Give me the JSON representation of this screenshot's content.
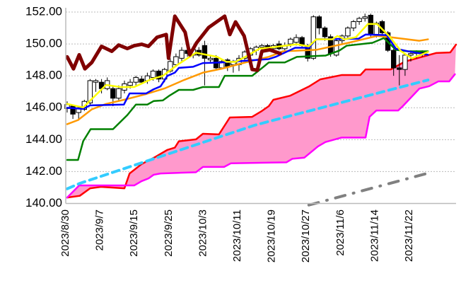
{
  "chart_data": {
    "type": "line",
    "title": "",
    "xlabel": "",
    "ylabel": "",
    "ylim": [
      140,
      152
    ],
    "xlim": [
      -0.3,
      68
    ],
    "y_ticks": [
      "140.00",
      "142.00",
      "144.00",
      "146.00",
      "148.00",
      "150.00",
      "152.00"
    ],
    "y_tick_values": [
      140,
      142,
      144,
      146,
      148,
      150,
      152
    ],
    "x_ticks": [
      {
        "i": 0,
        "label": "2023/8/30"
      },
      {
        "i": 6,
        "label": "2023/9/7"
      },
      {
        "i": 12,
        "label": "2023/9/15"
      },
      {
        "i": 18,
        "label": "2023/9/25"
      },
      {
        "i": 24,
        "label": "2023/10/3"
      },
      {
        "i": 30,
        "label": "2023/10/11"
      },
      {
        "i": 36,
        "label": "2023/10/19"
      },
      {
        "i": 42,
        "label": "2023/10/27"
      },
      {
        "i": 48,
        "label": "2023/11/6"
      },
      {
        "i": 54,
        "label": "2023/11/14"
      },
      {
        "i": 60,
        "label": "2023/11/22"
      }
    ],
    "grid": true,
    "colors": {
      "cloud": "#ff99cc",
      "candle_up": "#ffffff",
      "candle_down": "#000000"
    },
    "candles_ohlc": [
      [
        145.95,
        146.4,
        145.7,
        146.2
      ],
      [
        146.1,
        146.2,
        145.3,
        145.6
      ],
      [
        145.7,
        146.1,
        145.2,
        146.0
      ],
      [
        145.9,
        146.5,
        145.8,
        146.4
      ],
      [
        146.3,
        147.8,
        146.1,
        147.7
      ],
      [
        147.6,
        147.8,
        147.0,
        147.7
      ],
      [
        147.6,
        147.8,
        146.9,
        147.2
      ],
      [
        147.2,
        147.9,
        147.1,
        147.7
      ],
      [
        147.2,
        147.4,
        146.1,
        146.6
      ],
      [
        146.6,
        147.4,
        146.4,
        147.2
      ],
      [
        147.1,
        147.7,
        146.9,
        147.5
      ],
      [
        147.4,
        147.8,
        147.2,
        147.6
      ],
      [
        147.6,
        148.0,
        147.4,
        147.9
      ],
      [
        147.8,
        148.0,
        147.5,
        147.6
      ],
      [
        147.7,
        148.2,
        147.5,
        148.0
      ],
      [
        147.9,
        148.4,
        147.7,
        148.3
      ],
      [
        148.3,
        148.4,
        147.6,
        147.8
      ],
      [
        147.8,
        148.5,
        147.6,
        148.4
      ],
      [
        148.3,
        149.1,
        148.2,
        148.9
      ],
      [
        148.7,
        149.4,
        148.6,
        149.2
      ],
      [
        149.1,
        149.8,
        148.9,
        149.6
      ],
      [
        149.6,
        149.9,
        149.2,
        149.4
      ],
      [
        149.3,
        149.8,
        149.1,
        149.65
      ],
      [
        149.6,
        149.8,
        149.2,
        149.3
      ],
      [
        149.9,
        150.2,
        147.4,
        149.1
      ],
      [
        149.0,
        149.3,
        148.8,
        149.1
      ],
      [
        149.1,
        149.3,
        148.4,
        148.5
      ],
      [
        148.5,
        149.0,
        148.4,
        148.9
      ],
      [
        149.0,
        149.1,
        148.3,
        148.6
      ],
      [
        148.7,
        149.0,
        148.2,
        148.85
      ],
      [
        148.7,
        149.3,
        148.3,
        149.1
      ],
      [
        149.1,
        149.6,
        148.9,
        149.5
      ],
      [
        149.3,
        149.8,
        149.1,
        149.7
      ],
      [
        149.6,
        149.9,
        149.3,
        149.8
      ],
      [
        149.8,
        150.0,
        149.6,
        149.9
      ],
      [
        149.9,
        150.0,
        149.6,
        149.7
      ],
      [
        149.7,
        150.0,
        149.6,
        149.9
      ],
      [
        150.0,
        150.2,
        149.6,
        149.7
      ],
      [
        149.7,
        150.1,
        149.6,
        149.9
      ],
      [
        150.0,
        150.4,
        149.8,
        150.3
      ],
      [
        150.1,
        150.6,
        149.9,
        150.4
      ],
      [
        150.4,
        150.5,
        149.8,
        149.9
      ],
      [
        149.9,
        150.0,
        148.9,
        149.1
      ],
      [
        149.1,
        151.8,
        149.0,
        151.7
      ],
      [
        151.7,
        151.8,
        150.6,
        151.0
      ],
      [
        151.0,
        151.1,
        150.2,
        150.45
      ],
      [
        150.45,
        150.6,
        149.2,
        149.4
      ],
      [
        149.3,
        150.3,
        149.2,
        150.2
      ],
      [
        150.2,
        150.6,
        150.0,
        150.5
      ],
      [
        150.5,
        151.1,
        150.3,
        151.0
      ],
      [
        151.0,
        151.5,
        150.8,
        151.4
      ],
      [
        151.4,
        151.7,
        151.2,
        151.6
      ],
      [
        151.6,
        151.9,
        151.4,
        151.7
      ],
      [
        151.8,
        151.9,
        150.4,
        150.6
      ],
      [
        150.6,
        151.4,
        150.4,
        151.3
      ],
      [
        151.4,
        151.5,
        150.6,
        150.7
      ],
      [
        150.7,
        150.8,
        149.5,
        149.6
      ],
      [
        149.6,
        149.7,
        148.0,
        148.5
      ],
      [
        148.5,
        149.3,
        147.4,
        148.4
      ],
      [
        148.4,
        149.4,
        148.0,
        149.3
      ],
      [
        149.3,
        149.6,
        148.9,
        149.4
      ],
      [
        149.4,
        149.6,
        149.1,
        149.5
      ],
      [
        149.5,
        149.6,
        149.2,
        149.4
      ]
    ],
    "series": [
      {
        "name": "senkou-span-a",
        "color": "#ff0000",
        "width": 2.5,
        "dash": "",
        "points": [
          [
            0,
            140.37
          ],
          [
            2.2,
            140.48
          ],
          [
            4,
            140.95
          ],
          [
            5.9,
            141.04
          ],
          [
            10,
            140.95
          ],
          [
            10.9,
            141.88
          ],
          [
            13,
            142.47
          ],
          [
            15.4,
            142.92
          ],
          [
            17.5,
            143.36
          ],
          [
            18.8,
            143.5
          ],
          [
            19.5,
            143.9
          ],
          [
            22.5,
            144.02
          ],
          [
            23.7,
            144.37
          ],
          [
            26.5,
            144.33
          ],
          [
            28.4,
            145.39
          ],
          [
            32.3,
            145.43
          ],
          [
            34,
            145.8
          ],
          [
            35.2,
            146.1
          ],
          [
            36,
            146.5
          ],
          [
            38.9,
            146.75
          ],
          [
            42.2,
            147.33
          ],
          [
            44.2,
            147.78
          ],
          [
            47.9,
            148.05
          ],
          [
            51.2,
            148.05
          ],
          [
            52.1,
            148.4
          ],
          [
            56.5,
            148.4
          ],
          [
            59,
            148.9
          ],
          [
            64.4,
            149.43
          ],
          [
            66.9,
            149.47
          ],
          [
            67.9,
            149.96
          ]
        ]
      },
      {
        "name": "senkou-span-b",
        "color": "#ff00ff",
        "width": 2.5,
        "dash": "",
        "points": [
          [
            0,
            140.37
          ],
          [
            2.1,
            141.13
          ],
          [
            11.7,
            141.13
          ],
          [
            13,
            141.4
          ],
          [
            14.2,
            141.57
          ],
          [
            15.1,
            141.8
          ],
          [
            16.3,
            141.88
          ],
          [
            22.5,
            141.96
          ],
          [
            23.7,
            142.29
          ],
          [
            27.4,
            142.29
          ],
          [
            28.6,
            142.52
          ],
          [
            38.3,
            142.58
          ],
          [
            39.3,
            142.8
          ],
          [
            41.4,
            142.87
          ],
          [
            43.8,
            143.58
          ],
          [
            45.1,
            143.85
          ],
          [
            47.9,
            144.13
          ],
          [
            52.1,
            144.13
          ],
          [
            52.8,
            145.43
          ],
          [
            54,
            145.83
          ],
          [
            57.8,
            145.83
          ],
          [
            58.6,
            146.1
          ],
          [
            61.5,
            147.2
          ],
          [
            63.2,
            147.35
          ],
          [
            64.8,
            147.65
          ],
          [
            66.7,
            147.65
          ],
          [
            67.7,
            148.1
          ]
        ]
      },
      {
        "name": "long-term-trend-cyan",
        "color": "#33ccff",
        "width": 4,
        "dash": "10 7",
        "points": [
          [
            0,
            140.92
          ],
          [
            2.2,
            141.26
          ],
          [
            32.7,
            144.9
          ],
          [
            35.2,
            145.14
          ],
          [
            63,
            147.74
          ]
        ]
      },
      {
        "name": "long-term-trend-gray",
        "color": "#808080",
        "width": 4,
        "dash": "14 12 1 12",
        "points": [
          [
            42.2,
            139.9
          ],
          [
            63,
            141.9
          ]
        ]
      },
      {
        "name": "green-line",
        "color": "#008000",
        "width": 2.5,
        "dash": "",
        "points": [
          [
            0,
            142.73
          ],
          [
            1.9,
            142.73
          ],
          [
            2.8,
            143.91
          ],
          [
            4.1,
            144.66
          ],
          [
            8,
            144.66
          ],
          [
            10.5,
            145.54
          ],
          [
            12,
            146.2
          ],
          [
            14,
            146.2
          ],
          [
            15.1,
            146.42
          ],
          [
            16.7,
            146.46
          ],
          [
            17.9,
            146.77
          ],
          [
            19.5,
            147.12
          ],
          [
            22,
            147.12
          ],
          [
            23.7,
            147.3
          ],
          [
            26.5,
            147.3
          ],
          [
            27.5,
            148.0
          ],
          [
            32.3,
            148.0
          ],
          [
            34.3,
            148.57
          ],
          [
            35.2,
            148.84
          ],
          [
            38,
            148.84
          ],
          [
            40.1,
            149.19
          ],
          [
            45.1,
            149.27
          ],
          [
            47.5,
            149.58
          ],
          [
            48.8,
            149.89
          ],
          [
            53.3,
            150.07
          ],
          [
            55.3,
            150.37
          ],
          [
            57.4,
            149.63
          ],
          [
            59.5,
            149.54
          ],
          [
            63,
            149.54
          ]
        ]
      },
      {
        "name": "orange-line",
        "color": "#ff9900",
        "width": 2.5,
        "dash": "",
        "points": [
          [
            0,
            144.97
          ],
          [
            1.9,
            145.23
          ],
          [
            4.3,
            145.9
          ],
          [
            6.8,
            146.24
          ],
          [
            10.5,
            146.55
          ],
          [
            13.8,
            146.86
          ],
          [
            17,
            147.21
          ],
          [
            20.4,
            147.74
          ],
          [
            23.7,
            148.2
          ],
          [
            26.9,
            148.44
          ],
          [
            31.1,
            148.84
          ],
          [
            35.2,
            149.19
          ],
          [
            37.7,
            149.54
          ],
          [
            43.5,
            149.63
          ],
          [
            49.1,
            150.07
          ],
          [
            54.1,
            150.5
          ],
          [
            56.5,
            150.42
          ],
          [
            61.5,
            150.2
          ],
          [
            63,
            150.29
          ]
        ]
      },
      {
        "name": "kijun-sen",
        "color": "#0000ff",
        "width": 2.5,
        "dash": "",
        "points": [
          [
            0,
            146.0
          ],
          [
            2.8,
            145.93
          ],
          [
            4,
            146.15
          ],
          [
            9.9,
            146.2
          ],
          [
            10.9,
            146.9
          ],
          [
            13.8,
            146.9
          ],
          [
            15.1,
            147.16
          ],
          [
            16.3,
            147.34
          ],
          [
            17.5,
            148.0
          ],
          [
            18.8,
            148.2
          ],
          [
            19.5,
            148.5
          ],
          [
            22,
            148.57
          ],
          [
            23.7,
            148.8
          ],
          [
            26.9,
            148.84
          ],
          [
            35.2,
            149.05
          ],
          [
            36.4,
            149.19
          ],
          [
            39.8,
            149.76
          ],
          [
            42.2,
            149.76
          ],
          [
            43.5,
            150.29
          ],
          [
            50.9,
            150.33
          ],
          [
            52.1,
            150.59
          ],
          [
            55.8,
            150.55
          ],
          [
            57.4,
            149.7
          ],
          [
            59.5,
            149.54
          ],
          [
            63,
            149.32
          ]
        ]
      },
      {
        "name": "tenkan-sen",
        "color": "#ffff00",
        "width": 2.5,
        "dash": "",
        "points": [
          [
            0,
            146.24
          ],
          [
            2.8,
            146.02
          ],
          [
            4.3,
            146.55
          ],
          [
            6.8,
            147.43
          ],
          [
            9.3,
            147.3
          ],
          [
            11.7,
            147.3
          ],
          [
            14.6,
            147.78
          ],
          [
            16.7,
            148.0
          ],
          [
            19.5,
            148.75
          ],
          [
            22.5,
            149.45
          ],
          [
            26.2,
            149.19
          ],
          [
            27.8,
            148.88
          ],
          [
            29.4,
            148.88
          ],
          [
            31.1,
            149.19
          ],
          [
            33.6,
            149.71
          ],
          [
            35.2,
            149.76
          ],
          [
            40.1,
            149.98
          ],
          [
            42.2,
            149.85
          ],
          [
            43.5,
            150.29
          ],
          [
            46.3,
            150.29
          ],
          [
            47.2,
            150.5
          ],
          [
            48.4,
            150.29
          ],
          [
            50.4,
            150.42
          ],
          [
            52.5,
            151.25
          ],
          [
            54.1,
            151.25
          ],
          [
            56.2,
            150.5
          ],
          [
            58.3,
            149.54
          ],
          [
            60.2,
            149.1
          ],
          [
            63,
            149.5
          ]
        ]
      },
      {
        "name": "chikou-span",
        "color": "#800000",
        "width": 5,
        "dash": "",
        "points": [
          [
            0,
            149.19
          ],
          [
            1.1,
            148.44
          ],
          [
            2.1,
            149.32
          ],
          [
            3.1,
            148.44
          ],
          [
            4.3,
            148.84
          ],
          [
            6,
            149.85
          ],
          [
            7.8,
            149.54
          ],
          [
            9,
            149.93
          ],
          [
            10.5,
            149.71
          ],
          [
            11.7,
            149.89
          ],
          [
            13,
            149.98
          ],
          [
            14.2,
            149.85
          ],
          [
            15.7,
            150.42
          ],
          [
            17.3,
            150.59
          ],
          [
            17.7,
            149.1
          ],
          [
            18.8,
            151.74
          ],
          [
            20.6,
            150.73
          ],
          [
            21.4,
            149.32
          ],
          [
            22.6,
            150.07
          ],
          [
            24.7,
            151.03
          ],
          [
            27.5,
            151.74
          ],
          [
            28.4,
            150.59
          ],
          [
            29.4,
            151.38
          ],
          [
            30.9,
            150.5
          ],
          [
            32.3,
            148.4
          ],
          [
            33.2,
            148.35
          ],
          [
            34,
            149.54
          ],
          [
            35.4,
            149.63
          ],
          [
            37.2,
            149.4
          ]
        ]
      }
    ]
  }
}
